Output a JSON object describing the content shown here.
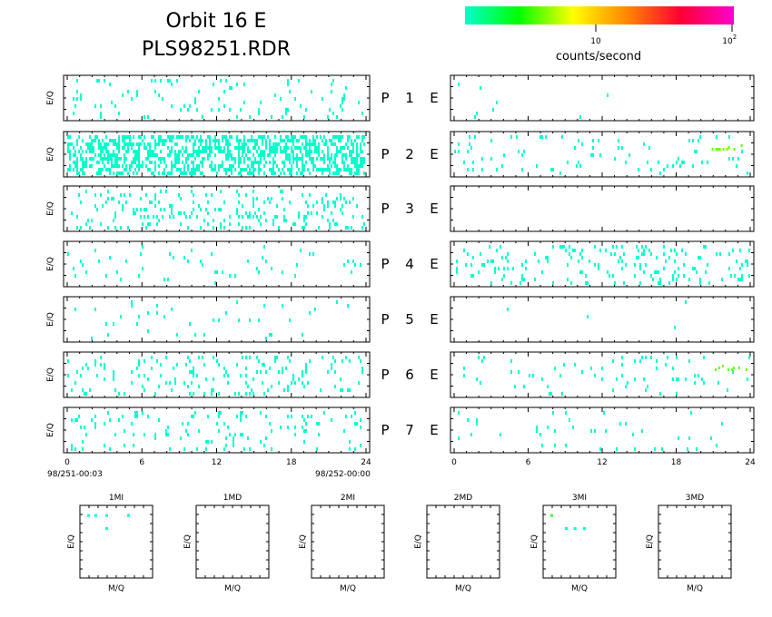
{
  "header": {
    "title_line1": "Orbit 16 E",
    "title_line2": "PLS98251.RDR"
  },
  "colorbar": {
    "tick_10": "10",
    "tick_100_base": "10",
    "tick_100_exp": "2",
    "label": "counts/second",
    "gradient": [
      "#00ffcc",
      "#00ff00",
      "#ffff00",
      "#ff8800",
      "#ff0033",
      "#ff00cc"
    ]
  },
  "panel_ylabel": "E/Q",
  "row_labels": [
    {
      "p": "P",
      "n": "1",
      "e": "E"
    },
    {
      "p": "P",
      "n": "2",
      "e": "E"
    },
    {
      "p": "P",
      "n": "3",
      "e": "E"
    },
    {
      "p": "P",
      "n": "4",
      "e": "E"
    },
    {
      "p": "P",
      "n": "5",
      "e": "E"
    },
    {
      "p": "P",
      "n": "6",
      "e": "E"
    },
    {
      "p": "P",
      "n": "7",
      "e": "E"
    }
  ],
  "x_ticks": [
    "0",
    "6",
    "12",
    "18",
    "24"
  ],
  "date_start": "98/251-00:03",
  "date_end": "98/252-00:00",
  "bottom_panels": [
    {
      "title": "1MI",
      "ylabel": "E/Q",
      "xlabel": "M/Q"
    },
    {
      "title": "1MD",
      "ylabel": "E/Q",
      "xlabel": "M/Q"
    },
    {
      "title": "2MI",
      "ylabel": "E/Q",
      "xlabel": "M/Q"
    },
    {
      "title": "2MD",
      "ylabel": "E/Q",
      "xlabel": "M/Q"
    },
    {
      "title": "3MI",
      "ylabel": "E/Q",
      "xlabel": "M/Q"
    },
    {
      "title": "3MD",
      "ylabel": "E/Q",
      "xlabel": "M/Q"
    }
  ],
  "chart_data": {
    "type": "heatmap",
    "title": "Orbit 16 E",
    "subtitle": "PLS98251.RDR",
    "colorbar_label": "counts/second",
    "colorbar_scale": "log",
    "x_range": [
      0,
      24
    ],
    "x_ticks": [
      0,
      6,
      12,
      18,
      24
    ],
    "ylabel": "E/Q",
    "low_color": "#00ffcc",
    "high_color": "#ff00cc",
    "left_column_density": [
      0.05,
      0.45,
      0.12,
      0.03,
      0.02,
      0.09,
      0.06
    ],
    "right_column_density": [
      0.004,
      0.05,
      0.0,
      0.1,
      0.003,
      0.05,
      0.02
    ]
  }
}
